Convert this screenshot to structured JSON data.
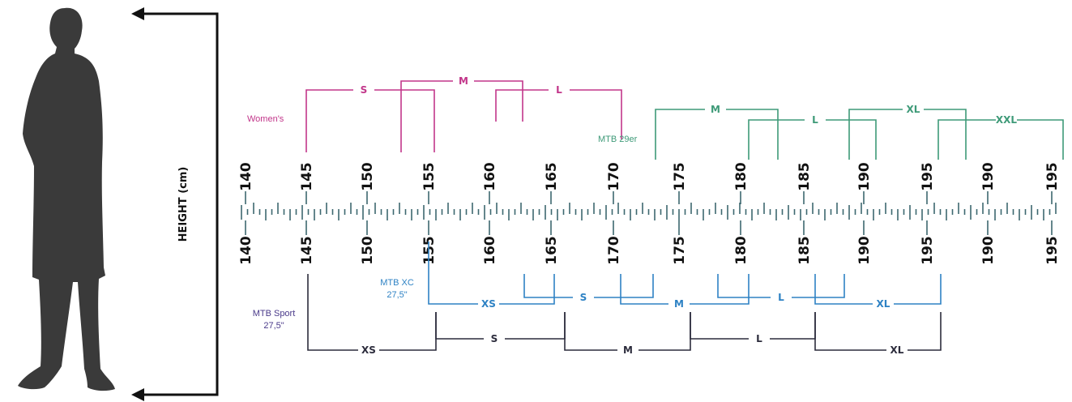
{
  "axis_title": "HEIGHT (cm)",
  "upper_tick_labels": [
    "140",
    "145",
    "150",
    "155",
    "160",
    "165",
    "170",
    "175",
    "180",
    "185",
    "190",
    "195",
    "190",
    "195"
  ],
  "lower_tick_labels": [
    "140",
    "145",
    "150",
    "155",
    "160",
    "165",
    "170",
    "175",
    "180",
    "185",
    "190",
    "195",
    "190",
    "195"
  ],
  "groups": {
    "womens": {
      "label": "Women's",
      "color": "#c2368a",
      "sizes": [
        "S",
        "M",
        "L"
      ]
    },
    "mtb29er": {
      "label": "MTB 29er",
      "color": "#3e9a78",
      "sizes": [
        "M",
        "L",
        "XL",
        "XXL"
      ]
    },
    "mtbxc": {
      "label_line1": "MTB XC",
      "label_line2": "27,5\"",
      "color": "#2e82c4",
      "sizes": [
        "XS",
        "S",
        "M",
        "L",
        "XL"
      ]
    },
    "mtbsport": {
      "label_line1": "MTB Sport",
      "label_line2": "27,5\"",
      "color": "#2c2c3c",
      "label_color": "#4a3a8a",
      "sizes": [
        "XS",
        "S",
        "M",
        "L",
        "XL"
      ]
    }
  },
  "colors": {
    "ruler": "#3d6870",
    "silhouette": "#3a3a3a",
    "arrow": "#111111"
  }
}
